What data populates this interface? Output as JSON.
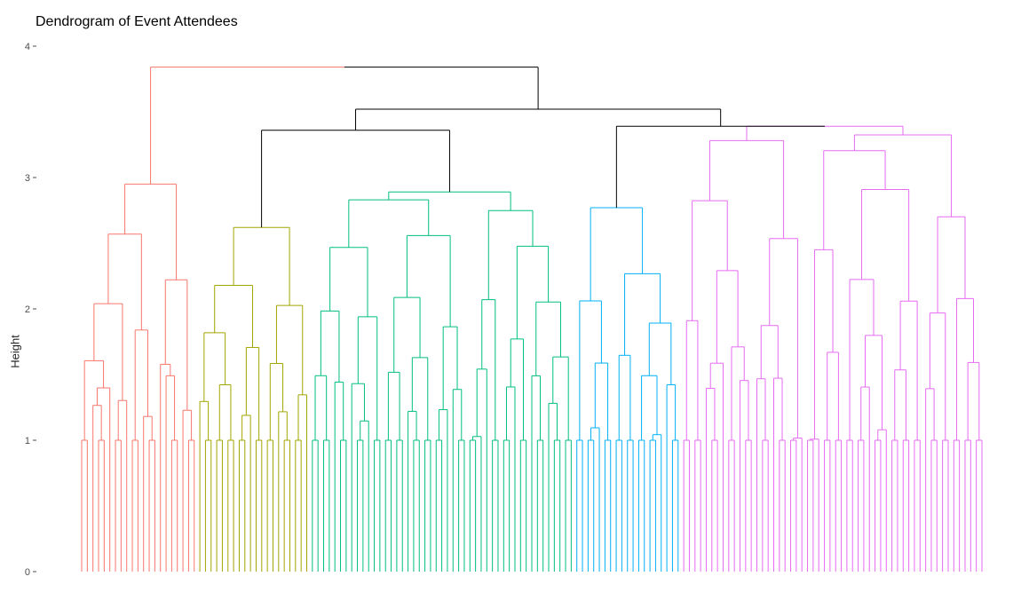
{
  "chart_data": {
    "type": "dendrogram",
    "title": "Dendrogram of Event Attendees",
    "xlabel": "",
    "ylabel": "Height",
    "ylim": [
      0,
      4
    ],
    "yticks": [
      0,
      1,
      2,
      3,
      4
    ],
    "grid": false,
    "legend": "none",
    "leaf_count": 161,
    "clusters": [
      {
        "color": "#F8766D",
        "leaves": 21,
        "merge_height": 2.95
      },
      {
        "color": "#A3A500",
        "leaves": 20,
        "merge_height": 2.62
      },
      {
        "color": "#00BF7D",
        "leaves": 47,
        "merge_height": 2.89
      },
      {
        "color": "#00B0F6",
        "leaves": 19,
        "merge_height": 2.77
      },
      {
        "color": "#E76BF3",
        "leaves": 54,
        "merge_height": 3.39
      }
    ],
    "top_merges": [
      {
        "join": [
          "cluster 2",
          "cluster 3"
        ],
        "height": 3.36
      },
      {
        "join": [
          "cluster 4",
          "cluster 5"
        ],
        "height": 3.39
      },
      {
        "join": [
          "clusters 2-3",
          "clusters 4-5"
        ],
        "height": 3.52
      },
      {
        "join": [
          "cluster 1",
          "clusters 2-5"
        ],
        "height": 3.84
      }
    ]
  }
}
